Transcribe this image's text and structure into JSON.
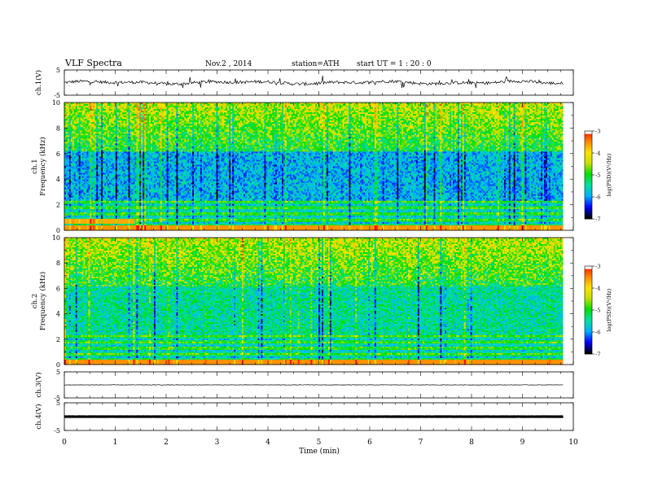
{
  "header": {
    "title": "VLF  Spectra",
    "date": "Nov.2  , 2014",
    "station": "station=ATH",
    "start": "start  UT  =   1 : 20 : 0"
  },
  "colors": {
    "low": "#000000",
    "mid": "#00e000",
    "high": "#ff0000",
    "stops": [
      "#000000",
      "#0000ff",
      "#00b0ff",
      "#00e0a0",
      "#00e000",
      "#c8e000",
      "#ffe000",
      "#ff8000",
      "#ff0000",
      "#ffffff"
    ]
  },
  "colorbar": {
    "label": "log(PSD)(V²/Hz)",
    "ticks": [
      "-3",
      "-4",
      "-5",
      "-6",
      "-7"
    ]
  },
  "chart_data": [
    {
      "type": "line",
      "name": "ch1-waveform",
      "ylabel": "ch.1(V)",
      "ylim": [
        -5,
        5
      ],
      "yticks": [
        "5",
        "-5"
      ],
      "x_range": [
        0,
        9.8
      ],
      "mean": 0,
      "noise_amplitude": 1.2
    },
    {
      "type": "heatmap",
      "name": "ch1-spectrogram",
      "ylabel": "ch.1\nFrequency (kHz)",
      "ylim": [
        0,
        10
      ],
      "yticks": [
        "0",
        "2",
        "4",
        "6",
        "8",
        "10"
      ],
      "x_range": [
        0,
        9.8
      ],
      "colorbar_range": [
        -7,
        -3
      ]
    },
    {
      "type": "heatmap",
      "name": "ch2-spectrogram",
      "ylabel": "ch.2\nFrequency (kHz)",
      "ylim": [
        0,
        10
      ],
      "yticks": [
        "0",
        "2",
        "4",
        "6",
        "8",
        "10"
      ],
      "x_range": [
        0,
        9.8
      ],
      "colorbar_range": [
        -7,
        -3
      ]
    },
    {
      "type": "line",
      "name": "ch3-waveform",
      "ylabel": "ch.3(V)",
      "ylim": [
        -5,
        5
      ],
      "yticks": [
        "5",
        "-5"
      ],
      "x_range": [
        0,
        9.8
      ],
      "mean": 0,
      "noise_amplitude": 0.15
    },
    {
      "type": "line",
      "name": "ch4-waveform",
      "ylabel": "ch.4(V)",
      "ylim": [
        -5,
        5
      ],
      "yticks": [
        "5",
        "-5"
      ],
      "x_range": [
        0,
        9.8
      ],
      "mean": 0,
      "noise_amplitude": 0.05
    }
  ],
  "xaxis": {
    "label": "Time  (min)",
    "ticks": [
      "0",
      "1",
      "2",
      "3",
      "4",
      "5",
      "6",
      "7",
      "8",
      "9",
      "10"
    ],
    "xlim": [
      0,
      10
    ]
  }
}
